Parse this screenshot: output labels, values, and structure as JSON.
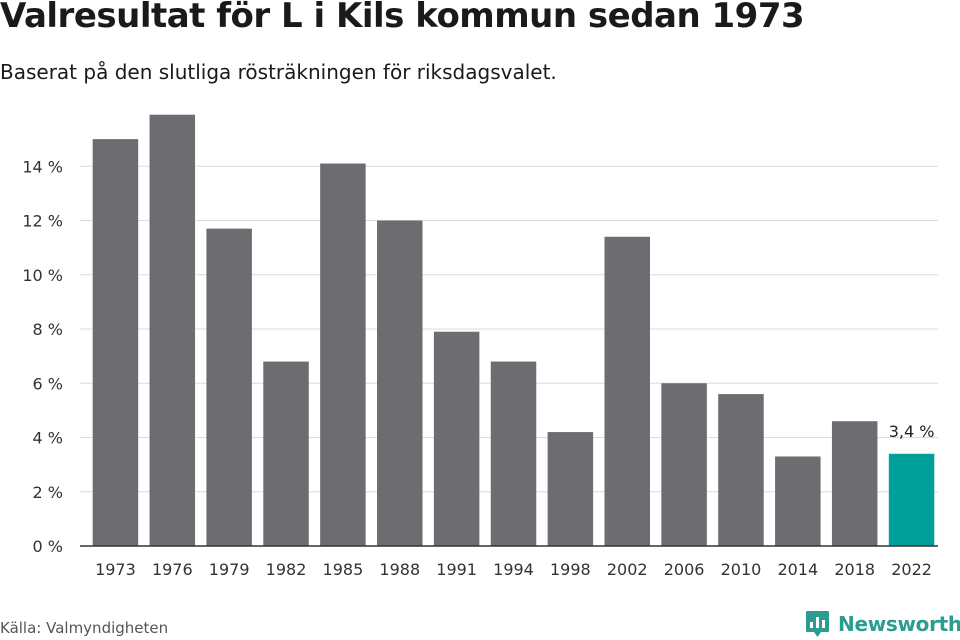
{
  "chart_data": {
    "type": "bar",
    "title": "Valresultat för L i Kils kommun sedan 1973",
    "subtitle": "Baserat på den slutliga rösträkningen för riksdagsvalet.",
    "categories": [
      "1973",
      "1976",
      "1979",
      "1982",
      "1985",
      "1988",
      "1991",
      "1994",
      "1998",
      "2002",
      "2006",
      "2010",
      "2014",
      "2018",
      "2022"
    ],
    "values": [
      15.0,
      15.9,
      11.7,
      6.8,
      14.1,
      12.0,
      7.9,
      6.8,
      4.2,
      11.4,
      6.0,
      5.6,
      3.3,
      4.6,
      3.4
    ],
    "ylim": [
      0,
      16
    ],
    "yticks": [
      0,
      2,
      4,
      6,
      8,
      10,
      12,
      14
    ],
    "ytick_labels": [
      "0 %",
      "2 %",
      "4 %",
      "6 %",
      "8 %",
      "10 %",
      "12 %",
      "14 %"
    ],
    "xlabel": "",
    "ylabel": "",
    "grid": true,
    "bar_color": "#6d6c70",
    "highlight": {
      "category": "2022",
      "color": "#00a099",
      "label": "3,4 %"
    }
  },
  "footer": {
    "source": "Källa: Valmyndigheten",
    "brand": "Newsworthy",
    "brand_color": "#2a9d8f"
  }
}
